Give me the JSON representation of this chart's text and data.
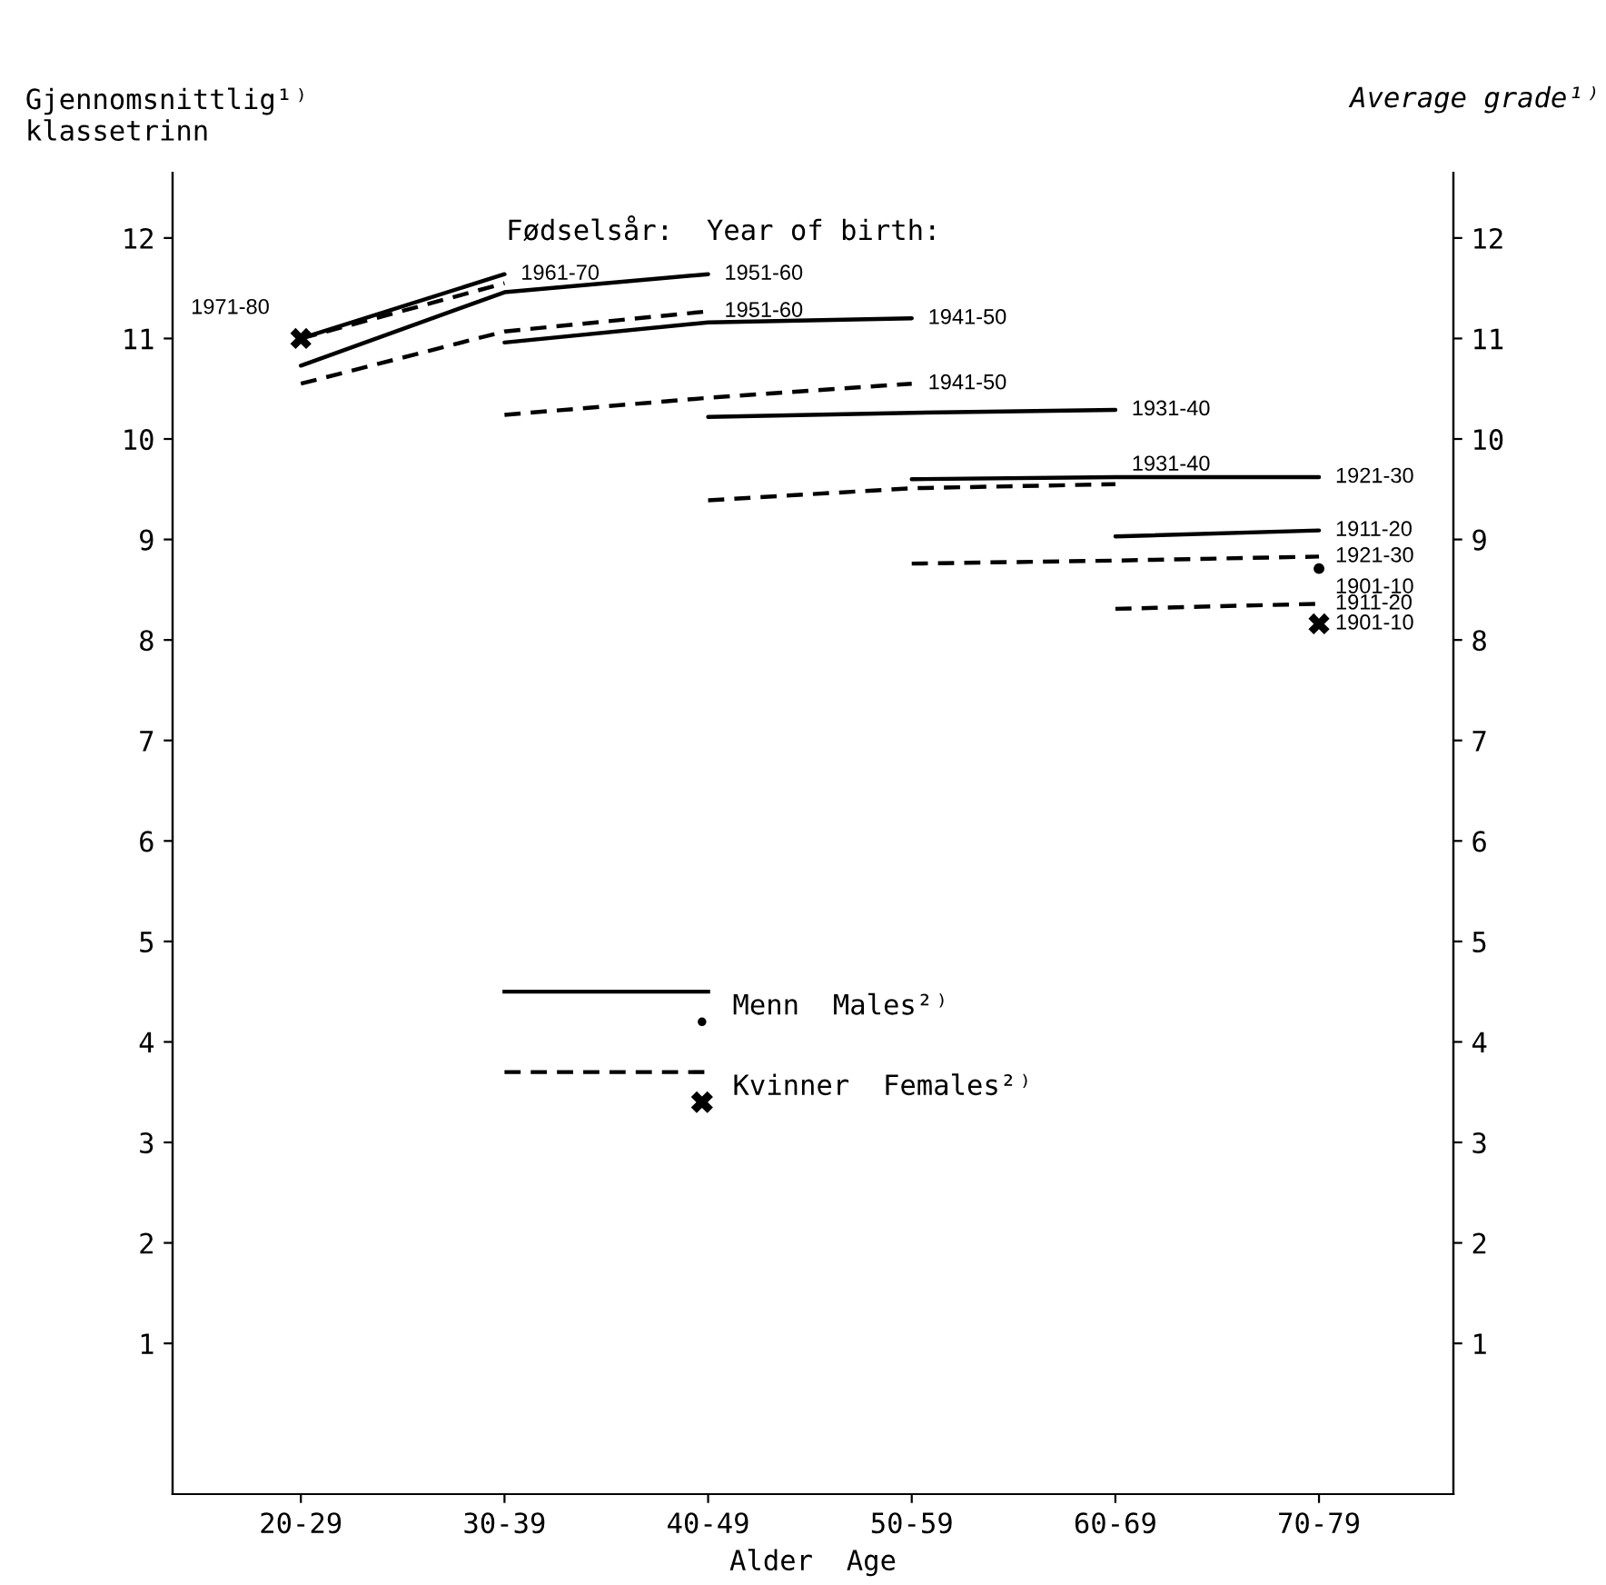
{
  "chart_data": {
    "type": "line",
    "xlabel": "Alder  Age",
    "ylabel": "Gjennomsnittlig¹⁾\nklassetrinn",
    "y2label": "Average grade¹⁾",
    "annotations": [
      "Fødselsår:  Year of birth:",
      "Menn  Males²⁾",
      "Kvinner  Females²⁾"
    ],
    "categories": [
      "20-29",
      "30-39",
      "40-49",
      "50-59",
      "60-69",
      "70-79"
    ],
    "ylim": [
      -0.5,
      12.65
    ],
    "yticks": [
      1,
      2,
      3,
      4,
      5,
      6,
      7,
      8,
      9,
      10,
      11,
      12
    ],
    "y2lim": [
      -0.5,
      12.65
    ],
    "y2ticks": [
      1,
      2,
      3,
      4,
      5,
      6,
      7,
      8,
      9,
      10,
      11,
      12
    ],
    "grid": false,
    "series": [
      {
        "name": "1971-80",
        "type": "scatter",
        "marker": "cross",
        "color": "#000000",
        "values": [
          11.0,
          null,
          null,
          null,
          null,
          null
        ]
      },
      {
        "name": "1961-70",
        "line_style": "solid",
        "color": "#000000",
        "values": [
          11.0,
          11.64,
          null,
          null,
          null,
          null
        ]
      },
      {
        "line_style": "dashed",
        "color": "#000000",
        "values": [
          11.0,
          11.55,
          null,
          null,
          null,
          null
        ]
      },
      {
        "name": "1951-60",
        "line_style": "solid",
        "color": "#000000",
        "values": [
          10.73,
          11.46,
          11.64,
          null,
          null,
          null
        ]
      },
      {
        "name": "1951-60",
        "line_style": "dashed",
        "color": "#000000",
        "values": [
          10.55,
          11.07,
          11.27,
          null,
          null,
          null
        ]
      },
      {
        "name": "1941-50",
        "line_style": "solid",
        "color": "#000000",
        "values": [
          null,
          10.96,
          11.16,
          11.2,
          null,
          null
        ]
      },
      {
        "name": "1941-50",
        "line_style": "dashed",
        "color": "#000000",
        "values": [
          null,
          10.24,
          10.41,
          10.55,
          null,
          null
        ]
      },
      {
        "name": "1931-40",
        "line_style": "solid",
        "color": "#000000",
        "values": [
          null,
          null,
          10.22,
          10.26,
          10.29,
          null
        ]
      },
      {
        "name": "1931-40",
        "line_style": "dashed",
        "color": "#000000",
        "values": [
          null,
          null,
          9.39,
          9.51,
          9.55,
          null
        ]
      },
      {
        "name": "1921-30",
        "line_style": "solid",
        "color": "#000000",
        "values": [
          null,
          null,
          null,
          9.6,
          9.62,
          9.62
        ]
      },
      {
        "name": "1911-20",
        "line_style": "solid",
        "color": "#000000",
        "values": [
          null,
          null,
          null,
          null,
          9.03,
          9.09
        ]
      },
      {
        "name": "1921-30",
        "line_style": "dashed",
        "color": "#000000",
        "values": [
          null,
          null,
          null,
          8.76,
          8.79,
          8.83
        ]
      },
      {
        "name": "1901-10",
        "type": "scatter",
        "marker": "circle",
        "color": "#000000",
        "values": [
          null,
          null,
          null,
          null,
          null,
          8.71
        ]
      },
      {
        "name": "1911-20",
        "line_style": "dashed",
        "color": "#000000",
        "values": [
          null,
          null,
          null,
          null,
          8.31,
          8.36
        ]
      },
      {
        "name": "1901-10",
        "type": "scatter",
        "marker": "cross",
        "color": "#000000",
        "values": [
          null,
          null,
          null,
          null,
          null,
          8.16
        ]
      }
    ]
  }
}
